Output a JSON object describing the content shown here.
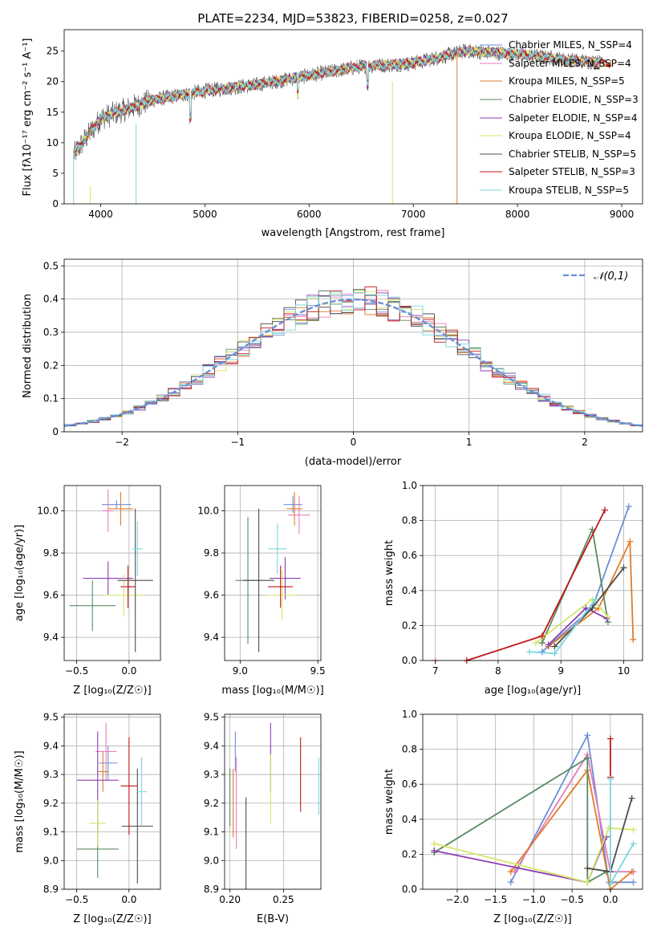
{
  "colors": [
    "#6b8fd8",
    "#e67dbd",
    "#e07b2a",
    "#5a8a63",
    "#8d3db2",
    "#d7e66a",
    "#4d4d4d",
    "#c01717",
    "#7bd6de"
  ],
  "panel_spectrum": {
    "title": "PLATE=2234, MJD=53823, FIBERID=0258, z=0.027",
    "xlabel": "wavelength [Angstrom, rest frame]",
    "ylabel": "Flux [fλ10⁻¹⁷ erg cm⁻² s⁻¹ A⁻¹]",
    "legend": [
      "Chabrier MILES, N_SSP=4",
      "Salpeter MILES, N_SSP=4",
      "Kroupa MILES, N_SSP=5",
      "Chabrier ELODIE, N_SSP=3",
      "Salpeter ELODIE, N_SSP=4",
      "Kroupa ELODIE, N_SSP=4",
      "Chabrier STELIB, N_SSP=5",
      "Salpeter STELIB, N_SSP=3",
      "Kroupa STELIB, N_SSP=5"
    ]
  },
  "panel_residuals": {
    "xlabel": "(data-model)/error",
    "ylabel": "Normed distribution",
    "legend": "𝒩(0,1)"
  },
  "panel_age_Z": {
    "xlabel": "Z [log₁₀(Z/Z☉)]",
    "ylabel": "age  [log₁₀(age/yr)]"
  },
  "panel_age_mass": {
    "xlabel": "mass [log₁₀(M/M☉)]"
  },
  "panel_weight_age": {
    "xlabel": "age  [log₁₀(age/yr)]",
    "ylabel": "mass weight"
  },
  "panel_mass_Z": {
    "xlabel": "Z [log₁₀(Z/Z☉)]",
    "ylabel": "mass [log₁₀(M/M☉)]"
  },
  "panel_mass_ebv": {
    "xlabel": "E(B-V)"
  },
  "panel_weight_Z": {
    "xlabel": "Z [log₁₀(Z/Z☉)]",
    "ylabel": "mass weight"
  },
  "chart_data": [
    {
      "type": "line",
      "title": "PLATE=2234, MJD=53823, FIBERID=0258, z=0.027",
      "xlabel": "wavelength [Angstrom, rest frame]",
      "ylabel": "Flux [fλ10⁻¹⁷ erg cm⁻² s⁻¹ A⁻¹]",
      "xlim": [
        3650,
        9200
      ],
      "ylim": [
        0,
        28.5
      ],
      "xticks": [
        4000,
        5000,
        6000,
        7000,
        8000,
        9000
      ],
      "yticks": [
        0,
        5,
        10,
        15,
        20,
        25
      ],
      "grid": false,
      "legend_position": "top-right",
      "spectrum_envelope": {
        "x": [
          3740,
          4000,
          4500,
          5000,
          5500,
          6000,
          6500,
          7000,
          7500,
          8000,
          8500,
          8900
        ],
        "y": [
          8,
          14,
          17,
          18.5,
          19.5,
          21,
          22.5,
          23,
          25,
          24.5,
          23.5,
          23
        ]
      }
    },
    {
      "type": "line",
      "xlabel": "(data-model)/error",
      "ylabel": "Normed distribution",
      "xlim": [
        -2.5,
        2.5
      ],
      "ylim": [
        0,
        0.52
      ],
      "xticks": [
        -2,
        -1,
        0,
        1,
        2
      ],
      "yticks": [
        0,
        0.1,
        0.2,
        0.3,
        0.4,
        0.5
      ],
      "grid": true,
      "legend_position": "top-right",
      "reference": {
        "name": "𝒩(0,1)",
        "mean": 0,
        "sigma": 1
      }
    },
    {
      "type": "scatter",
      "xlabel": "Z [log₁₀(Z/Z☉)]",
      "ylabel": "age  [log₁₀(age/yr)]",
      "xlim": [
        -0.62,
        0.3
      ],
      "ylim": [
        9.29,
        10.12
      ],
      "xticks": [
        -0.5,
        0.0
      ],
      "yticks": [
        9.4,
        9.6,
        9.8,
        10.0
      ],
      "points": [
        {
          "x": -0.12,
          "y": 10.03,
          "xerr": 0.14,
          "yerr": 0.02
        },
        {
          "x": -0.2,
          "y": 10.0,
          "xerr": 0.05,
          "yerr": 0.1
        },
        {
          "x": -0.08,
          "y": 10.01,
          "xerr": 0.12,
          "yerr": 0.08
        },
        {
          "x": -0.35,
          "y": 9.55,
          "xerr": 0.22,
          "yerr": 0.12
        },
        {
          "x": -0.2,
          "y": 9.68,
          "xerr": 0.24,
          "yerr": 0.08
        },
        {
          "x": -0.05,
          "y": 9.6,
          "xerr": 0.2,
          "yerr": 0.1
        },
        {
          "x": 0.06,
          "y": 9.67,
          "xerr": 0.17,
          "yerr": 0.34
        },
        {
          "x": -0.01,
          "y": 9.64,
          "xerr": 0.07,
          "yerr": 0.1
        },
        {
          "x": 0.08,
          "y": 9.82,
          "xerr": 0.05,
          "yerr": 0.13
        }
      ]
    },
    {
      "type": "scatter",
      "xlabel": "mass [log₁₀(M/M☉)]",
      "xlim": [
        8.9,
        9.52
      ],
      "ylim": [
        9.29,
        10.12
      ],
      "xticks": [
        9.0,
        9.5
      ],
      "yticks": [
        9.4,
        9.6,
        9.8,
        10.0
      ],
      "points": [
        {
          "x": 9.34,
          "y": 10.03,
          "xerr": 0.06,
          "yerr": 0.04
        },
        {
          "x": 9.38,
          "y": 9.98,
          "xerr": 0.07,
          "yerr": 0.09
        },
        {
          "x": 9.35,
          "y": 10.01,
          "xerr": 0.05,
          "yerr": 0.08
        },
        {
          "x": 9.05,
          "y": 9.67,
          "xerr": 0.08,
          "yerr": 0.3
        },
        {
          "x": 9.29,
          "y": 9.68,
          "xerr": 0.1,
          "yerr": 0.1
        },
        {
          "x": 9.27,
          "y": 9.6,
          "xerr": 0.1,
          "yerr": 0.12
        },
        {
          "x": 9.12,
          "y": 9.67,
          "xerr": 0.1,
          "yerr": 0.34
        },
        {
          "x": 9.26,
          "y": 9.64,
          "xerr": 0.08,
          "yerr": 0.1
        },
        {
          "x": 9.24,
          "y": 9.82,
          "xerr": 0.06,
          "yerr": 0.12
        }
      ]
    },
    {
      "type": "line",
      "xlabel": "age  [log₁₀(age/yr)]",
      "ylabel": "mass weight",
      "xlim": [
        6.8,
        10.3
      ],
      "ylim": [
        0,
        1.0
      ],
      "xticks": [
        7,
        8,
        9,
        10
      ],
      "yticks": [
        0,
        0.2,
        0.4,
        0.6,
        0.8,
        1.0
      ],
      "grid": true,
      "series": [
        {
          "x": [
            8.7,
            9.5,
            10.08
          ],
          "y": [
            0.05,
            0.3,
            0.88
          ]
        },
        {
          "x": 7.0,
          "y": 0.0
        },
        {
          "x": [
            8.8,
            9.6,
            10.1,
            10.15
          ],
          "y": [
            0.08,
            0.3,
            0.68,
            0.12
          ]
        },
        {
          "x": [
            8.7,
            9.5,
            9.75
          ],
          "y": [
            0.1,
            0.75,
            0.22
          ]
        },
        {
          "x": [
            8.8,
            9.4,
            9.73
          ],
          "y": [
            0.09,
            0.3,
            0.24
          ]
        },
        {
          "x": [
            8.6,
            9.5,
            9.75
          ],
          "y": [
            0.1,
            0.35,
            0.25
          ]
        },
        {
          "x": [
            8.9,
            9.5,
            10.0
          ],
          "y": [
            0.08,
            0.3,
            0.53
          ]
        },
        {
          "x": [
            7.5,
            8.7,
            9.7
          ],
          "y": [
            0.0,
            0.14,
            0.86
          ]
        },
        {
          "x": [
            8.5,
            8.9,
            9.55
          ],
          "y": [
            0.05,
            0.04,
            0.35
          ]
        }
      ]
    },
    {
      "type": "scatter",
      "xlabel": "Z [log₁₀(Z/Z☉)]",
      "ylabel": "mass [log₁₀(M/M☉)]",
      "xlim": [
        -0.62,
        0.3
      ],
      "ylim": [
        8.9,
        9.51
      ],
      "xticks": [
        -0.5,
        0.0
      ],
      "yticks": [
        8.9,
        9.0,
        9.1,
        9.2,
        9.3,
        9.4,
        9.5
      ],
      "points": [
        {
          "x": -0.2,
          "y": 9.34,
          "xerr": 0.09,
          "yerr": 0.06
        },
        {
          "x": -0.22,
          "y": 9.38,
          "xerr": 0.1,
          "yerr": 0.1
        },
        {
          "x": -0.25,
          "y": 9.31,
          "xerr": 0.05,
          "yerr": 0.07
        },
        {
          "x": -0.3,
          "y": 9.04,
          "xerr": 0.2,
          "yerr": 0.1
        },
        {
          "x": -0.3,
          "y": 9.28,
          "xerr": 0.2,
          "yerr": 0.17
        },
        {
          "x": -0.3,
          "y": 9.13,
          "xerr": 0.08,
          "yerr": 0.08
        },
        {
          "x": 0.08,
          "y": 9.12,
          "xerr": 0.15,
          "yerr": 0.2
        },
        {
          "x": 0.0,
          "y": 9.26,
          "xerr": 0.08,
          "yerr": 0.17
        },
        {
          "x": 0.12,
          "y": 9.24,
          "xerr": 0.05,
          "yerr": 0.12
        }
      ]
    },
    {
      "type": "scatter",
      "xlabel": "E(B-V)",
      "xlim": [
        0.195,
        0.285
      ],
      "ylim": [
        8.9,
        9.51
      ],
      "xticks": [
        0.2,
        0.25
      ],
      "yticks": [
        8.9,
        9.0,
        9.1,
        9.2,
        9.3,
        9.4,
        9.5
      ],
      "points": [
        {
          "x": 0.205,
          "y": 9.38,
          "yerr": 0.07
        },
        {
          "x": 0.206,
          "y": 9.2,
          "yerr": 0.16
        },
        {
          "x": 0.203,
          "y": 9.2,
          "yerr": 0.12
        },
        {
          "x": 0.2,
          "y": 9.22,
          "yerr": 0.1
        },
        {
          "x": 0.238,
          "y": 9.36,
          "yerr": 0.12
        },
        {
          "x": 0.238,
          "y": 9.25,
          "yerr": 0.12
        },
        {
          "x": 0.215,
          "y": 9.06,
          "yerr": 0.16
        },
        {
          "x": 0.266,
          "y": 9.3,
          "yerr": 0.13
        },
        {
          "x": 0.283,
          "y": 9.26,
          "yerr": 0.1
        }
      ]
    },
    {
      "type": "line",
      "xlabel": "Z [log₁₀(Z/Z☉)]",
      "ylabel": "mass weight",
      "xlim": [
        -2.45,
        0.42
      ],
      "ylim": [
        0,
        1.0
      ],
      "xticks": [
        -2.0,
        -1.5,
        -1.0,
        -0.5,
        0.0
      ],
      "yticks": [
        0,
        0.2,
        0.4,
        0.6,
        0.8,
        1.0
      ],
      "grid": true,
      "series": [
        {
          "x": [
            -1.3,
            -0.3,
            -0.02,
            0.3
          ],
          "y": [
            0.04,
            0.88,
            0.04,
            0.04
          ]
        },
        {
          "x": [
            -1.25,
            -0.3,
            0.0,
            0.3
          ],
          "y": [
            0.1,
            0.77,
            0.1,
            0.1
          ]
        },
        {
          "x": [
            -1.3,
            -0.3,
            0.0,
            0.28
          ],
          "y": [
            0.1,
            0.68,
            0.0,
            0.1
          ]
        },
        {
          "x": [
            -2.3,
            -0.3,
            -0.3,
            -0.05
          ],
          "y": [
            0.21,
            0.75,
            0.04,
            0.1
          ]
        },
        {
          "x": [
            -2.3,
            -0.3,
            -0.05
          ],
          "y": [
            0.22,
            0.04,
            0.3
          ]
        },
        {
          "x": [
            -2.3,
            -0.3,
            -0.02,
            0.3
          ],
          "y": [
            0.26,
            0.04,
            0.35,
            0.34
          ]
        },
        {
          "x": [
            -0.3,
            0.0,
            0.28
          ],
          "y": [
            0.12,
            0.1,
            0.52
          ]
        },
        {
          "x": [
            0.0,
            0.0
          ],
          "y": [
            0.86,
            0.64
          ]
        },
        {
          "x": [
            0.0,
            0.0,
            0.3
          ],
          "y": [
            0.63,
            0.03,
            0.26
          ]
        }
      ]
    }
  ]
}
